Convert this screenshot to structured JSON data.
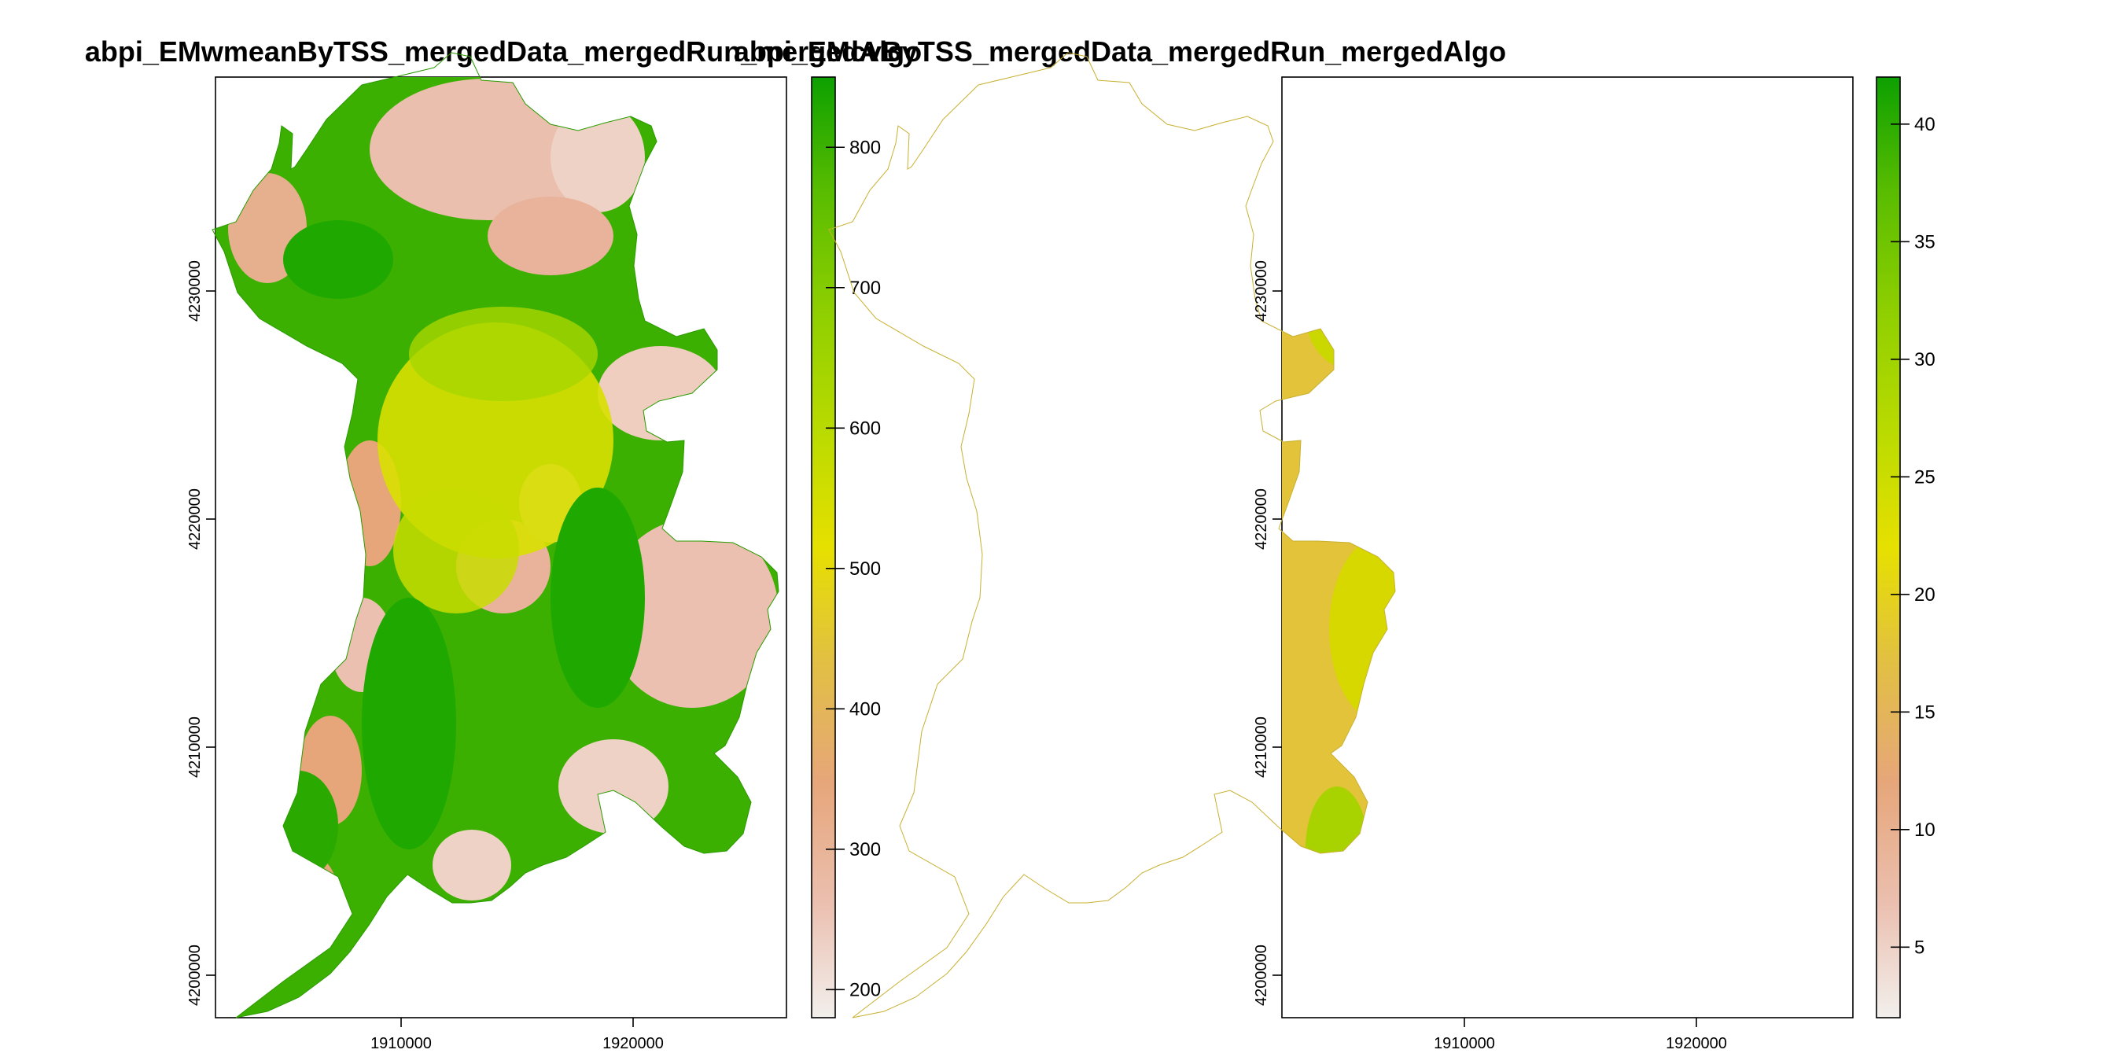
{
  "chart_data": [
    {
      "type": "heatmap",
      "title": "abpi_EMwmeanByTSS_mergedData_mergedRun_mergedAlgo",
      "xlabel": "",
      "ylabel": "",
      "x_ticks": [
        "1910000",
        "1920000"
      ],
      "y_ticks": [
        "4230000",
        "4220000",
        "4210000",
        "4200000"
      ],
      "colorbar": {
        "ticks": [
          "800",
          "700",
          "600",
          "500",
          "400",
          "300",
          "200"
        ],
        "range": [
          180,
          850
        ],
        "colors": [
          "#f2efec",
          "#ebc0b0",
          "#e6a67a",
          "#e2c042",
          "#e6e000",
          "#bbdb00",
          "#8fcf00",
          "#58bc00",
          "#0da000"
        ]
      },
      "legend": "right colorbar",
      "grid": false
    },
    {
      "type": "heatmap",
      "title": "abpi_EMcvByTSS_mergedData_mergedRun_mergedAlgo",
      "xlabel": "",
      "ylabel": "",
      "x_ticks": [
        "1910000",
        "1920000"
      ],
      "y_ticks": [
        "4230000",
        "4220000",
        "4210000",
        "4200000"
      ],
      "colorbar": {
        "ticks": [
          "40",
          "35",
          "30",
          "25",
          "20",
          "15",
          "10",
          "5"
        ],
        "range": [
          2,
          42
        ],
        "colors": [
          "#f2efec",
          "#ebc0b0",
          "#e6a67a",
          "#e2c042",
          "#e6e000",
          "#bbdb00",
          "#8fcf00",
          "#58bc00",
          "#0da000"
        ]
      },
      "legend": "right colorbar",
      "grid": false
    }
  ]
}
